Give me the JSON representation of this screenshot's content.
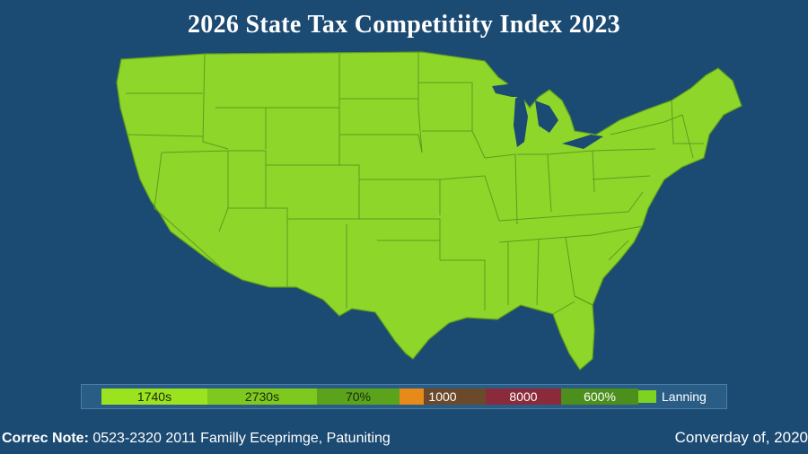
{
  "title": "2026 State Tax Competitiity Index  2023",
  "colors": {
    "background": "#1b4a72",
    "land": "#8fd62a",
    "border": "#5f9c1e"
  },
  "legend": [
    {
      "label": "1740s",
      "color": "#9be21f"
    },
    {
      "label": "2730s",
      "color": "#7fc91e"
    },
    {
      "label": "70%",
      "color": "#5aa31a"
    },
    {
      "label": "1000",
      "color": "#e88a1a"
    },
    {
      "label": "8000",
      "color": "#8a2a3a"
    },
    {
      "label": "600%",
      "color": "#4d8f1c"
    },
    {
      "label": "Lanning",
      "color": "#7ed321"
    }
  ],
  "footer": {
    "note_label": "Correc Note:",
    "note_text": "0523-2320 2011 Familly Eceprimge, Patuniting",
    "source": "Converday of, 2020"
  }
}
